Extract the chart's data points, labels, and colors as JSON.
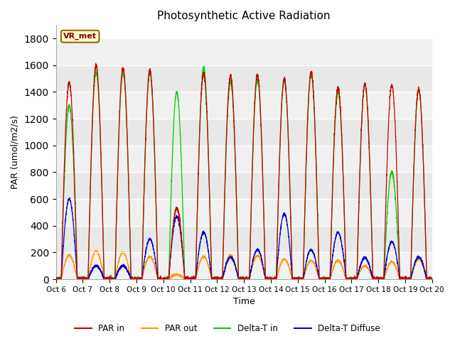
{
  "title": "Photosynthetic Active Radiation",
  "ylabel": "PAR (umol/m2/s)",
  "xlabel": "Time",
  "ylim": [
    0,
    1900
  ],
  "yticks": [
    0,
    200,
    400,
    600,
    800,
    1000,
    1200,
    1400,
    1600,
    1800
  ],
  "legend_labels": [
    "PAR in",
    "PAR out",
    "Delta-T in",
    "Delta-T Diffuse"
  ],
  "legend_colors": [
    "#cc0000",
    "#ff9900",
    "#00cc00",
    "#0000cc"
  ],
  "tag_label": "VR_met",
  "tag_facecolor": "#ffffcc",
  "tag_edgecolor": "#996600",
  "tag_textcolor": "#800000",
  "fig_facecolor": "#ffffff",
  "plot_bg_bands": [
    "#f0f0f0",
    "#e0e0e0"
  ],
  "n_days": 14,
  "points_per_day": 288,
  "start_day": 6,
  "day_peaks_in": [
    1470,
    1600,
    1580,
    1560,
    530,
    1540,
    1520,
    1530,
    1500,
    1550,
    1430,
    1460,
    1450,
    1420
  ],
  "day_peaks_out": [
    180,
    210,
    200,
    170,
    35,
    170,
    180,
    175,
    150,
    140,
    140,
    100,
    130,
    150
  ],
  "day_peaks_dtin": [
    1300,
    1550,
    1550,
    1540,
    1400,
    1580,
    1480,
    1490,
    1490,
    1530,
    1400,
    1460,
    800,
    1420
  ],
  "day_peaks_dtdiff": [
    600,
    100,
    100,
    300,
    470,
    350,
    165,
    220,
    490,
    220,
    350,
    160,
    280,
    165
  ]
}
